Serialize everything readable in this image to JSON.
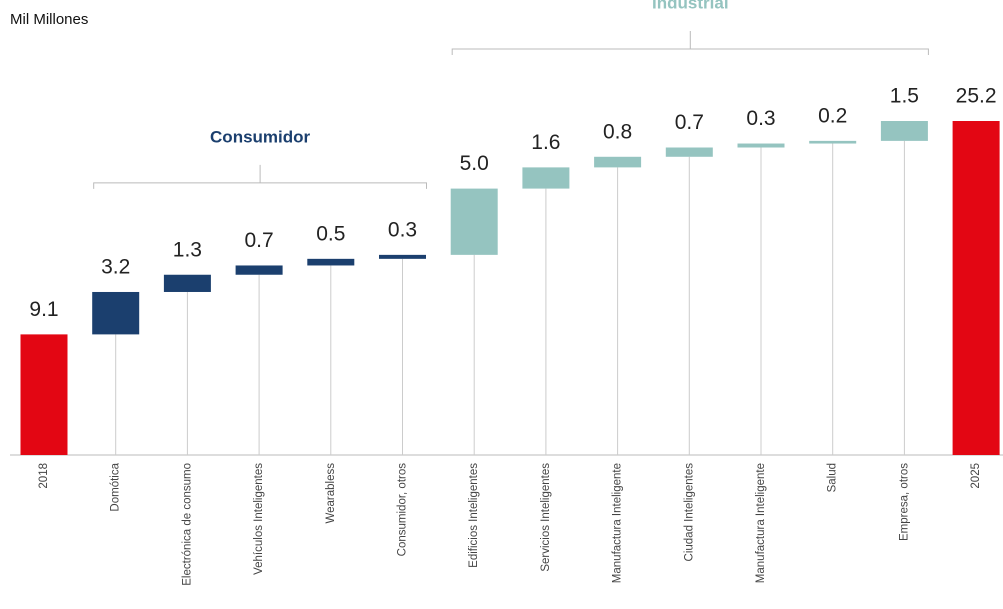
{
  "chart_data": {
    "type": "waterfall",
    "title": "Mil Millones",
    "categories": [
      "2018",
      "Domótica",
      "Electrónica de consumo",
      "Vehículos Inteligentes",
      "Wearabless",
      "Consumidor, otros",
      "Edificios Inteligentes",
      "Servicios Inteligentes",
      "Manufactura Inteligente",
      "Ciudad Inteligentes",
      "Manufactura Inteligente",
      "Salud",
      "Empresa, otros",
      "2025"
    ],
    "values": [
      9.1,
      3.2,
      1.3,
      0.7,
      0.5,
      0.3,
      5,
      1.6,
      0.8,
      0.7,
      0.3,
      0.2,
      1.5,
      25.2
    ],
    "value_labels": [
      "9.1",
      "3.2",
      "1.3",
      "0.7",
      "0.5",
      "0.3",
      "5.0",
      "1.6",
      "0.8",
      "0.7",
      "0.3",
      "0.2",
      "1.5",
      "25.2"
    ],
    "measures": [
      "total",
      "relative",
      "relative",
      "relative",
      "relative",
      "relative",
      "relative",
      "relative",
      "relative",
      "relative",
      "relative",
      "relative",
      "relative",
      "total"
    ],
    "colors": [
      "#e30613",
      "#1b3f6e",
      "#1b3f6e",
      "#1b3f6e",
      "#1b3f6e",
      "#1b3f6e",
      "#95c4c0",
      "#95c4c0",
      "#95c4c0",
      "#95c4c0",
      "#95c4c0",
      "#95c4c0",
      "#95c4c0",
      "#e30613"
    ],
    "groups": [
      {
        "name": "Consumidor",
        "color": "#1b3f6e",
        "from": 1,
        "to": 5
      },
      {
        "name": "Industrial",
        "color": "#95c4c0",
        "from": 6,
        "to": 12
      }
    ]
  }
}
